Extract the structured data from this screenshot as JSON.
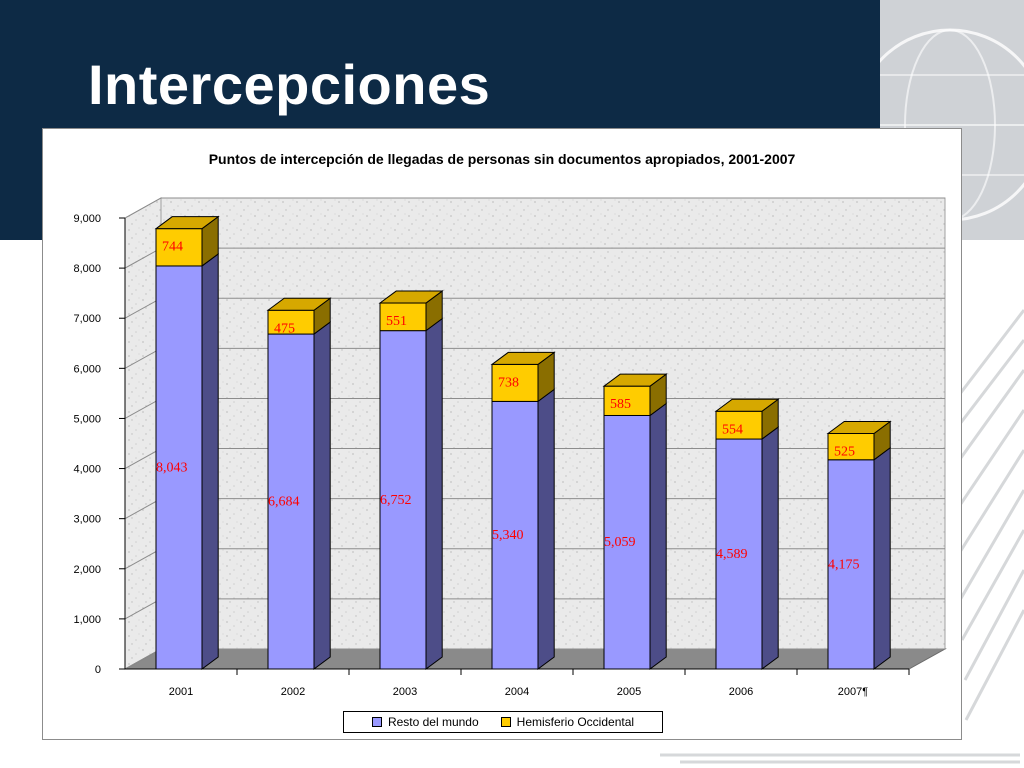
{
  "slide": {
    "title": "Intercepciones"
  },
  "colors": {
    "band": "#0d2a45",
    "series_resto": "#9999ff",
    "series_hemisferio": "#ffcc00",
    "data_label": "#ff0000"
  },
  "chart_data": {
    "type": "bar",
    "stacked": true,
    "three_d": true,
    "title": "Puntos de intercepción de llegadas de personas sin documentos apropiados,  2001-2007",
    "categories": [
      "2001",
      "2002",
      "2003",
      "2004",
      "2005",
      "2006",
      "2007¶"
    ],
    "series": [
      {
        "name": "Resto del mundo",
        "color": "#9999ff",
        "values": [
          8043,
          6684,
          6752,
          5340,
          5059,
          4589,
          4175
        ],
        "labels": [
          "8,043",
          "6,684",
          "6,752",
          "5,340",
          "5,059",
          "4,589",
          "4,175"
        ]
      },
      {
        "name": "Hemisferio Occidental",
        "color": "#ffcc00",
        "values": [
          744,
          475,
          551,
          738,
          585,
          554,
          525
        ],
        "labels": [
          "744",
          "475",
          "551",
          "738",
          "585",
          "554",
          "525"
        ]
      }
    ],
    "ylim": [
      0,
      9000
    ],
    "yticks": [
      "0",
      "1,000",
      "2,000",
      "3,000",
      "4,000",
      "5,000",
      "6,000",
      "7,000",
      "8,000",
      "9,000"
    ],
    "grid": true,
    "legend_position": "bottom"
  }
}
